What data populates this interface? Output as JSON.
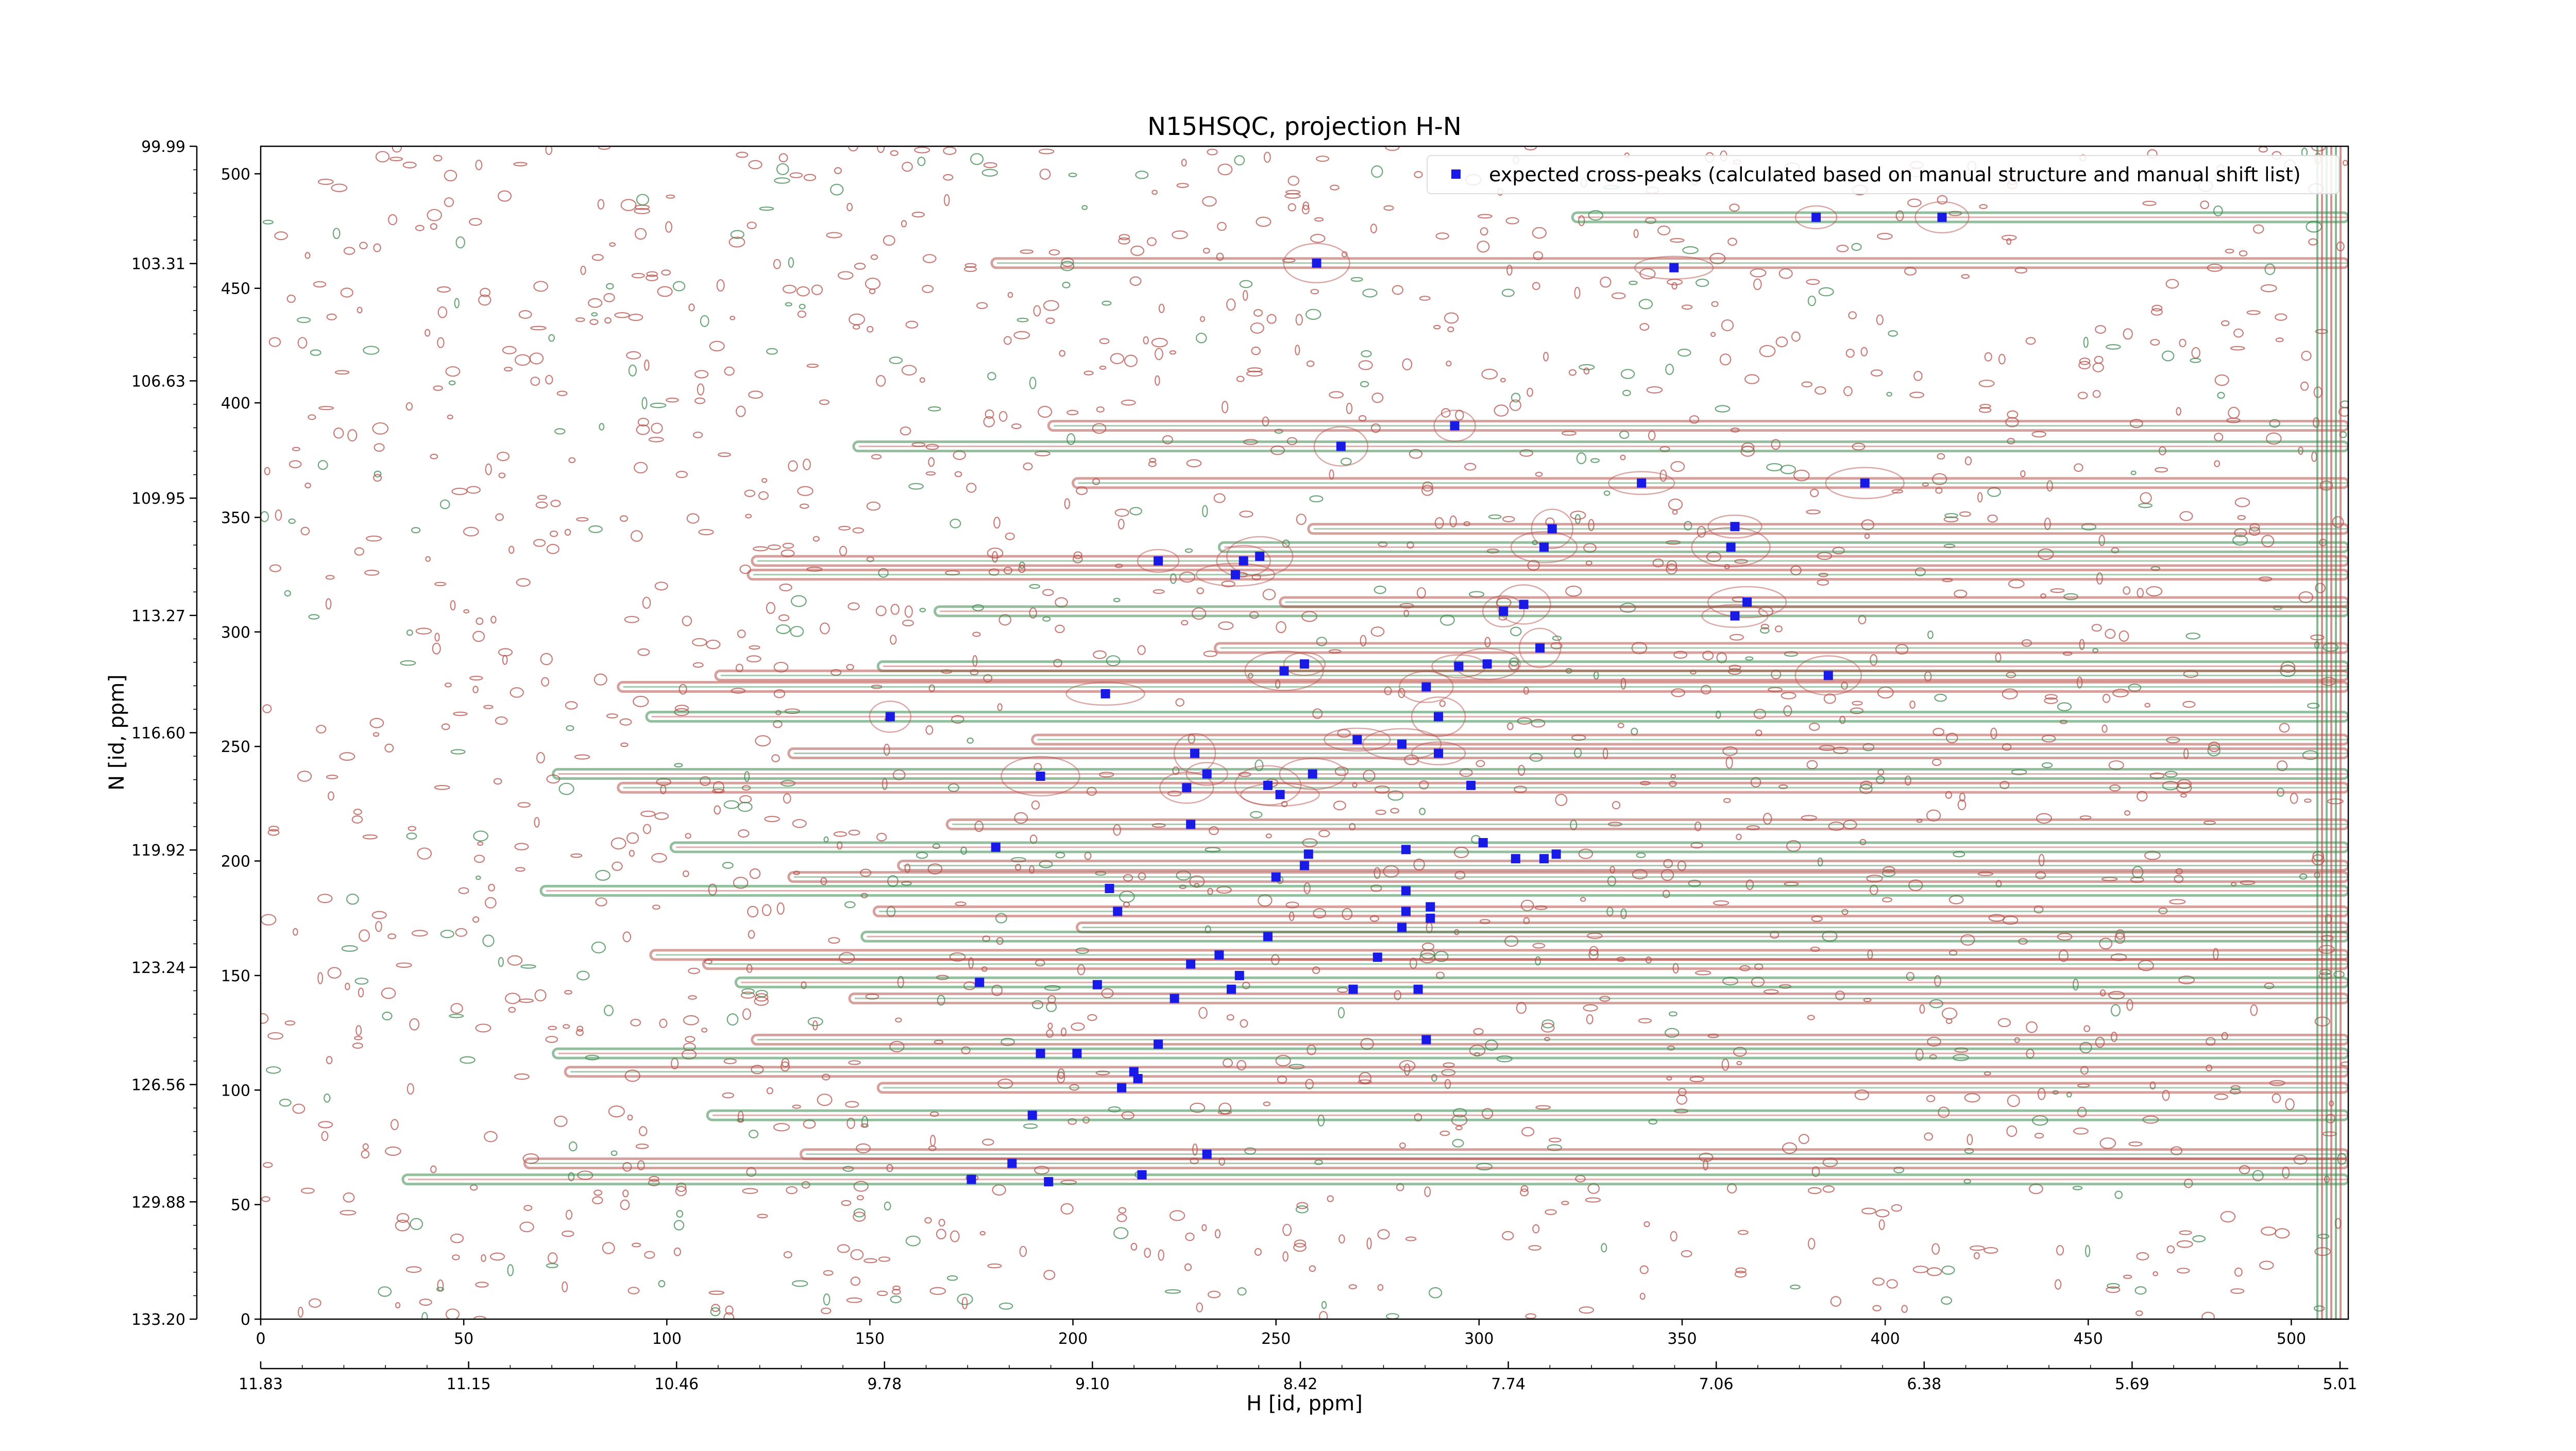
{
  "chart_data": {
    "type": "scatter",
    "title": "N15HSQC, projection H-N",
    "xlabel": "H [id, ppm]",
    "ylabel": "N [id, ppm]",
    "xlim": [
      0,
      512
    ],
    "ylim": [
      0,
      512
    ],
    "x_ticks": [
      0,
      50,
      100,
      150,
      200,
      250,
      300,
      350,
      400,
      450,
      500
    ],
    "y_ticks": [
      0,
      50,
      100,
      150,
      200,
      250,
      300,
      350,
      400,
      450,
      500
    ],
    "x_ppm_tick_positions": [
      0,
      51.2,
      102.4,
      153.6,
      204.8,
      256,
      307.2,
      358.4,
      409.6,
      460.8,
      512
    ],
    "x_ppm_tick_labels": [
      "11.83",
      "11.15",
      "10.46",
      "9.78",
      "9.10",
      "8.42",
      "7.74",
      "7.06",
      "6.38",
      "5.69",
      "5.01"
    ],
    "y_ppm_tick_positions": [
      0,
      51.2,
      102.4,
      153.6,
      204.8,
      256,
      307.2,
      358.4,
      409.6,
      460.8,
      512
    ],
    "y_ppm_tick_labels": [
      "133.20",
      "129.88",
      "126.56",
      "123.24",
      "119.92",
      "116.60",
      "113.27",
      "109.95",
      "106.63",
      "103.31",
      "99.99"
    ],
    "legend": {
      "label": "expected cross-peaks (calculated based on manual structure and manual shift list)",
      "position": "top-right",
      "marker_color": "#1a1ae6"
    },
    "colors": {
      "positive_contour": "#b5524b",
      "negative_contour": "#3d8a4f",
      "marker": "#1a1ae6"
    },
    "series": [
      {
        "name": "expected cross-peaks (calculated based on manual structure and manual shift list)",
        "points": [
          [
            383,
            481
          ],
          [
            414,
            481
          ],
          [
            260,
            461
          ],
          [
            348,
            459
          ],
          [
            294,
            390
          ],
          [
            266,
            381
          ],
          [
            340,
            365
          ],
          [
            395,
            365
          ],
          [
            318,
            345
          ],
          [
            363,
            346
          ],
          [
            316,
            337
          ],
          [
            362,
            337
          ],
          [
            221,
            331
          ],
          [
            242,
            331
          ],
          [
            246,
            333
          ],
          [
            240,
            325
          ],
          [
            306,
            309
          ],
          [
            311,
            312
          ],
          [
            363,
            307
          ],
          [
            366,
            313
          ],
          [
            315,
            293
          ],
          [
            295,
            285
          ],
          [
            302,
            286
          ],
          [
            252,
            283
          ],
          [
            257,
            286
          ],
          [
            287,
            276
          ],
          [
            386,
            281
          ],
          [
            208,
            273
          ],
          [
            155,
            263
          ],
          [
            290,
            263
          ],
          [
            270,
            253
          ],
          [
            281,
            251
          ],
          [
            230,
            247
          ],
          [
            290,
            247
          ],
          [
            259,
            238
          ],
          [
            192,
            237
          ],
          [
            233,
            238
          ],
          [
            228,
            232
          ],
          [
            248,
            233
          ],
          [
            251,
            229
          ],
          [
            298,
            233
          ],
          [
            229,
            216
          ],
          [
            181,
            206
          ],
          [
            282,
            205
          ],
          [
            301,
            208
          ],
          [
            258,
            203
          ],
          [
            257,
            198
          ],
          [
            309,
            201
          ],
          [
            316,
            201
          ],
          [
            319,
            203
          ],
          [
            250,
            193
          ],
          [
            282,
            187
          ],
          [
            209,
            188
          ],
          [
            211,
            178
          ],
          [
            282,
            178
          ],
          [
            288,
            175
          ],
          [
            288,
            180
          ],
          [
            281,
            171
          ],
          [
            248,
            167
          ],
          [
            229,
            155
          ],
          [
            236,
            159
          ],
          [
            275,
            158
          ],
          [
            177,
            147
          ],
          [
            241,
            150
          ],
          [
            206,
            146
          ],
          [
            269,
            144
          ],
          [
            239,
            144
          ],
          [
            285,
            144
          ],
          [
            225,
            140
          ],
          [
            287,
            122
          ],
          [
            221,
            120
          ],
          [
            192,
            116
          ],
          [
            201,
            116
          ],
          [
            215,
            108
          ],
          [
            216,
            105
          ],
          [
            212,
            101
          ],
          [
            190,
            89
          ],
          [
            233,
            72
          ],
          [
            185,
            68
          ],
          [
            175,
            61
          ],
          [
            194,
            60
          ],
          [
            217,
            63
          ]
        ]
      }
    ]
  }
}
